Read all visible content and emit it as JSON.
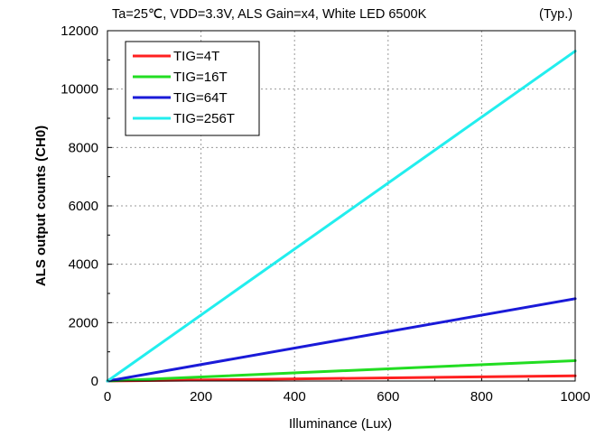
{
  "chart_data": {
    "type": "line",
    "title": "Ta=25℃, VDD=3.3V, ALS Gain=x4, White LED 6500K",
    "note": "(Typ.)",
    "xlabel": "Illuminance (Lux)",
    "ylabel": "ALS output counts (CH0)",
    "xlim": [
      0,
      1000
    ],
    "ylim": [
      0,
      12000
    ],
    "x_ticks": [
      "0",
      "200",
      "400",
      "600",
      "800",
      "1000"
    ],
    "y_ticks": [
      "0",
      "2000",
      "4000",
      "6000",
      "8000",
      "10000",
      "12000"
    ],
    "grid": true,
    "legend_position": "top-left",
    "series": [
      {
        "name": "TIG=4T",
        "color": "#ff2020",
        "x": [
          0,
          1000
        ],
        "values": [
          0,
          180
        ]
      },
      {
        "name": "TIG=16T",
        "color": "#22dd22",
        "x": [
          0,
          1000
        ],
        "values": [
          0,
          700
        ]
      },
      {
        "name": "TIG=64T",
        "color": "#1a1ad8",
        "x": [
          0,
          1000
        ],
        "values": [
          0,
          2820
        ]
      },
      {
        "name": "TIG=256T",
        "color": "#22eeee",
        "x": [
          0,
          1000
        ],
        "values": [
          0,
          11300
        ]
      }
    ]
  }
}
